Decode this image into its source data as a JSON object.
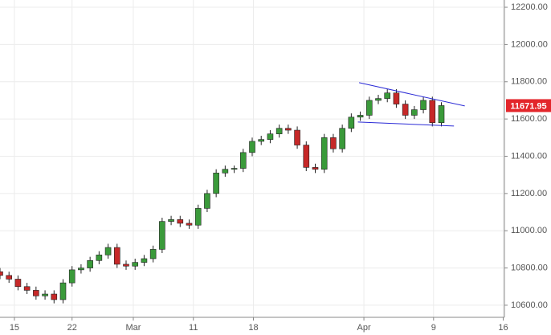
{
  "chart_data": {
    "type": "candlestick",
    "x": [
      0,
      0.75,
      1.5,
      2.25,
      3,
      3.75,
      4.5,
      5.25,
      6,
      6.75,
      7.5,
      8.25,
      9,
      9.75,
      10.5,
      11.25,
      12,
      12.75,
      13.5,
      14.25,
      15,
      15.75,
      16.5,
      17.25,
      18,
      18.75,
      19.5,
      20.25,
      21,
      21.75,
      22.5,
      23.25,
      24,
      24.75,
      25.5,
      26.25,
      27,
      27.75,
      28.5,
      29.25,
      30,
      30.75,
      31.5,
      32.25,
      33,
      33.75,
      34.5,
      35.25,
      36,
      36.75
    ],
    "open": [
      10780,
      10760,
      10740,
      10700,
      10680,
      10650,
      10660,
      10630,
      10720,
      10790,
      10800,
      10840,
      10870,
      10910,
      10820,
      10810,
      10830,
      10850,
      10900,
      11050,
      11060,
      11040,
      11030,
      11120,
      11200,
      11310,
      11330,
      11335,
      11420,
      11480,
      11490,
      11520,
      11550,
      11540,
      11460,
      11340,
      11330,
      11500,
      11440,
      11550,
      11610,
      11620,
      11700,
      11710,
      11740,
      11680,
      11620,
      11650,
      11700,
      11580
    ],
    "high": [
      10800,
      10780,
      10760,
      10720,
      10700,
      10680,
      10680,
      10740,
      10810,
      10820,
      10860,
      10890,
      10930,
      10930,
      10840,
      10850,
      10870,
      10920,
      11070,
      11080,
      11080,
      11060,
      11140,
      11220,
      11330,
      11350,
      11350,
      11440,
      11500,
      11510,
      11540,
      11570,
      11570,
      11560,
      11480,
      11360,
      11520,
      11520,
      11570,
      11630,
      11640,
      11720,
      11730,
      11760,
      11760,
      11700,
      11670,
      11720,
      11720,
      11690
    ],
    "low": [
      10740,
      10720,
      10680,
      10660,
      10630,
      10630,
      10610,
      10610,
      10700,
      10770,
      10780,
      10820,
      10850,
      10800,
      10790,
      10790,
      10810,
      10830,
      10880,
      11030,
      11020,
      11010,
      11010,
      11100,
      11180,
      11290,
      11310,
      11315,
      11400,
      11460,
      11470,
      11500,
      11520,
      11440,
      11320,
      11310,
      11310,
      11420,
      11420,
      11530,
      11590,
      11600,
      11680,
      11690,
      11660,
      11600,
      11600,
      11630,
      11560,
      11560
    ],
    "close": [
      10760,
      10740,
      10700,
      10680,
      10650,
      10660,
      10630,
      10720,
      10790,
      10800,
      10840,
      10870,
      10910,
      10820,
      10810,
      10830,
      10850,
      10900,
      11050,
      11060,
      11040,
      11030,
      11120,
      11200,
      11310,
      11330,
      11335,
      11420,
      11480,
      11490,
      11520,
      11550,
      11540,
      11460,
      11340,
      11330,
      11500,
      11440,
      11550,
      11610,
      11620,
      11700,
      11710,
      11740,
      11680,
      11620,
      11650,
      11700,
      11580,
      11671.95
    ],
    "up_color": "#3a9a3a",
    "down_color": "#c62828",
    "last_color": "#e3262b",
    "xlim": [
      0,
      42
    ],
    "ylim": [
      10535,
      12239
    ],
    "xticks": [
      {
        "value": 1.2,
        "label": "15"
      },
      {
        "value": 6,
        "label": "22"
      },
      {
        "value": 11.1,
        "label": "Mar"
      },
      {
        "value": 16.1,
        "label": "11"
      },
      {
        "value": 21.1,
        "label": "18"
      },
      {
        "value": 30.3,
        "label": "Apr"
      },
      {
        "value": 36.1,
        "label": "9"
      },
      {
        "value": 41.9,
        "label": "16"
      }
    ],
    "yticks": [
      {
        "value": 10600,
        "label": "10600.00"
      },
      {
        "value": 10800,
        "label": "10800.00"
      },
      {
        "value": 11000,
        "label": "11000.00"
      },
      {
        "value": 11200,
        "label": "11200.00"
      },
      {
        "value": 11400,
        "label": "11400.00"
      },
      {
        "value": 11600,
        "label": "11600.00"
      },
      {
        "value": 11800,
        "label": "11800.00"
      },
      {
        "value": 12000,
        "label": "12000.00"
      },
      {
        "value": 12200,
        "label": "12200.00"
      }
    ],
    "grid": true,
    "trendlines": [
      {
        "color": "#2b2bd6",
        "x": [
          29.9,
          38.7
        ],
        "y": [
          11795,
          11670
        ]
      },
      {
        "color": "#2b2bd6",
        "x": [
          29.8,
          37.8
        ],
        "y": [
          11584,
          11562
        ]
      }
    ]
  }
}
